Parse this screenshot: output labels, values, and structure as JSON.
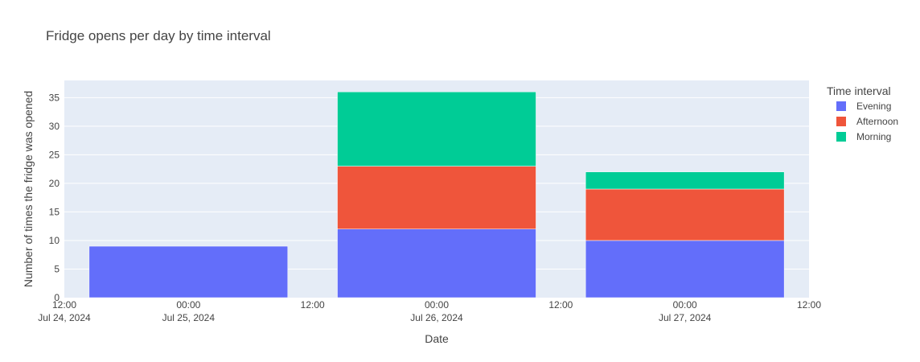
{
  "chart_data": {
    "type": "bar",
    "stacked": true,
    "title": "Fridge opens per day by time interval",
    "xlabel": "Date",
    "ylabel": "Number of times the fridge was opened",
    "x": [
      "2024-07-25",
      "2024-07-26",
      "2024-07-27"
    ],
    "x_range": [
      "2024-07-24 12:00",
      "2024-07-27 12:00"
    ],
    "x_ticks": [
      {
        "line1": "12:00",
        "line2": "Jul 24, 2024"
      },
      {
        "line1": "00:00",
        "line2": "Jul 25, 2024"
      },
      {
        "line1": "12:00",
        "line2": ""
      },
      {
        "line1": "00:00",
        "line2": "Jul 26, 2024"
      },
      {
        "line1": "12:00",
        "line2": ""
      },
      {
        "line1": "00:00",
        "line2": "Jul 27, 2024"
      },
      {
        "line1": "12:00",
        "line2": ""
      }
    ],
    "ylim": [
      0,
      38
    ],
    "y_ticks": [
      0,
      5,
      10,
      15,
      20,
      25,
      30,
      35
    ],
    "grid": true,
    "legend_title": "Time interval",
    "legend_position": "right",
    "series": [
      {
        "name": "Evening",
        "color": "#636efa",
        "values": [
          9,
          12,
          10
        ]
      },
      {
        "name": "Afternoon",
        "color": "#ef553b",
        "values": [
          0,
          11,
          9
        ]
      },
      {
        "name": "Morning",
        "color": "#00cc96",
        "values": [
          0,
          13,
          3
        ]
      }
    ]
  },
  "colors": {
    "plot_background": "#e5ecf6",
    "gridline": "#ffffff",
    "text": "#444444"
  }
}
